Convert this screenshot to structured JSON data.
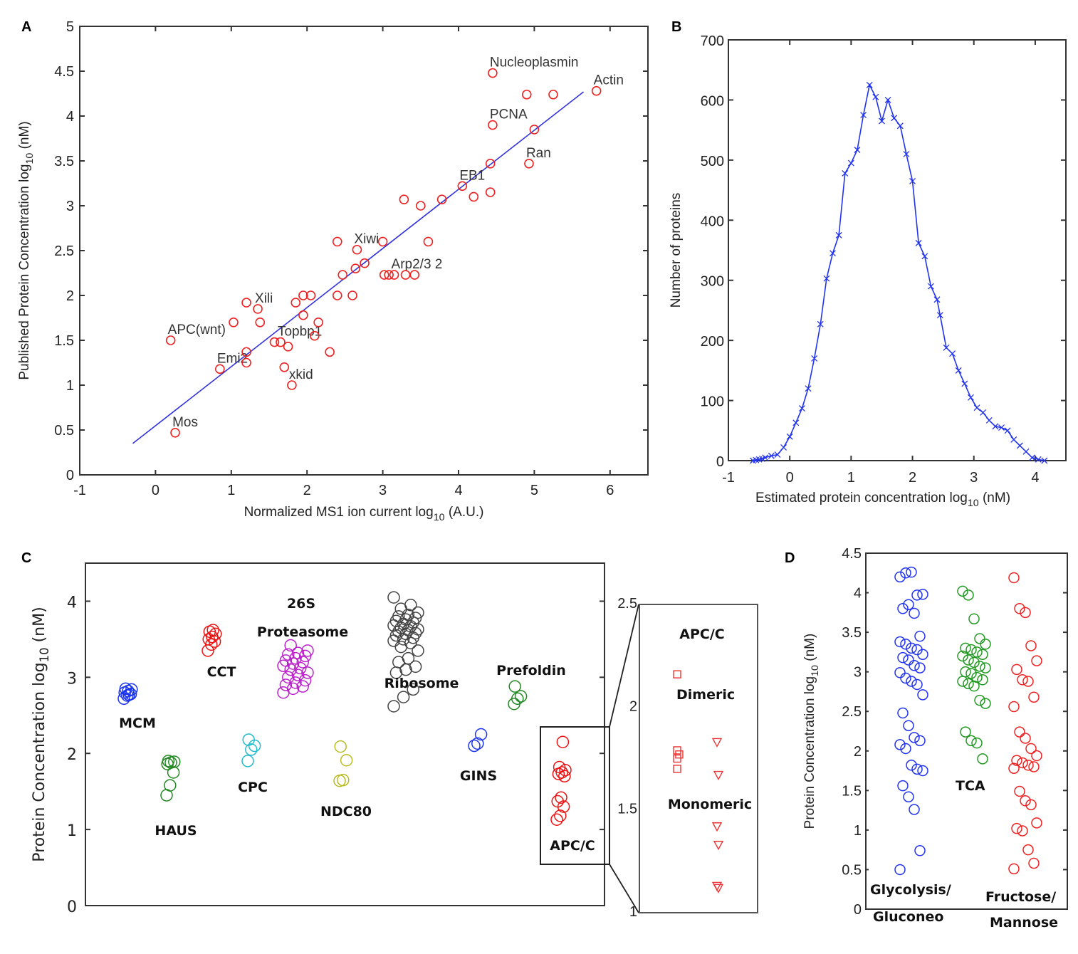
{
  "chart_data": [
    {
      "panel": "A",
      "type": "scatter",
      "xlabel": "Normalized MS1 ion current log",
      "xlabel_sub": "10",
      "xlabel_suffix": " (A.U.)",
      "ylabel": "Published Protein Concentration log",
      "ylabel_sub": "10",
      "ylabel_suffix": " (nM)",
      "xlim": [
        -1,
        6.5
      ],
      "ylim": [
        0,
        5
      ],
      "xticks": [
        -1,
        0,
        1,
        2,
        3,
        4,
        5,
        6
      ],
      "yticks": [
        0,
        0.5,
        1,
        1.5,
        2,
        2.5,
        3,
        3.5,
        4,
        4.5,
        5
      ],
      "marker_color": "#ee2222",
      "fit_color": "#3333dd",
      "fit_line": {
        "x": [
          -0.3,
          5.65
        ],
        "y": [
          0.35,
          4.27
        ]
      },
      "points": [
        {
          "x": 0.2,
          "y": 1.5,
          "label": "APC(wnt)"
        },
        {
          "x": 0.26,
          "y": 0.47,
          "label": "Mos"
        },
        {
          "x": 0.85,
          "y": 1.18,
          "label": "Emi2"
        },
        {
          "x": 1.03,
          "y": 1.7
        },
        {
          "x": 1.2,
          "y": 1.92
        },
        {
          "x": 1.2,
          "y": 1.37
        },
        {
          "x": 1.2,
          "y": 1.25
        },
        {
          "x": 1.35,
          "y": 1.85,
          "label": "Xili"
        },
        {
          "x": 1.38,
          "y": 1.7
        },
        {
          "x": 1.57,
          "y": 1.48
        },
        {
          "x": 1.65,
          "y": 1.48,
          "label": "Topbp1"
        },
        {
          "x": 1.7,
          "y": 1.2
        },
        {
          "x": 1.75,
          "y": 1.43
        },
        {
          "x": 1.8,
          "y": 1.0,
          "label": "xkid"
        },
        {
          "x": 1.85,
          "y": 1.92
        },
        {
          "x": 1.95,
          "y": 2.0
        },
        {
          "x": 1.95,
          "y": 1.78
        },
        {
          "x": 2.05,
          "y": 2.0
        },
        {
          "x": 2.1,
          "y": 1.55
        },
        {
          "x": 2.15,
          "y": 1.7
        },
        {
          "x": 2.3,
          "y": 1.37
        },
        {
          "x": 2.4,
          "y": 2.6
        },
        {
          "x": 2.4,
          "y": 2.0
        },
        {
          "x": 2.47,
          "y": 2.23
        },
        {
          "x": 2.6,
          "y": 2.0
        },
        {
          "x": 2.64,
          "y": 2.3
        },
        {
          "x": 2.66,
          "y": 2.51,
          "label": "Xiwi"
        },
        {
          "x": 2.76,
          "y": 2.36
        },
        {
          "x": 3.0,
          "y": 2.6
        },
        {
          "x": 3.02,
          "y": 2.23
        },
        {
          "x": 3.08,
          "y": 2.23
        },
        {
          "x": 3.15,
          "y": 2.23,
          "label": "Arp2/3 2"
        },
        {
          "x": 3.3,
          "y": 2.23
        },
        {
          "x": 3.42,
          "y": 2.23
        },
        {
          "x": 3.28,
          "y": 3.07
        },
        {
          "x": 3.5,
          "y": 3.0
        },
        {
          "x": 3.6,
          "y": 2.6
        },
        {
          "x": 3.78,
          "y": 3.07
        },
        {
          "x": 4.05,
          "y": 3.22,
          "label": "EB1"
        },
        {
          "x": 4.2,
          "y": 3.1
        },
        {
          "x": 4.42,
          "y": 3.47
        },
        {
          "x": 4.42,
          "y": 3.15
        },
        {
          "x": 4.45,
          "y": 4.48,
          "label": "Nucleoplasmin"
        },
        {
          "x": 4.45,
          "y": 3.9,
          "label": "PCNA"
        },
        {
          "x": 4.9,
          "y": 4.24
        },
        {
          "x": 4.93,
          "y": 3.47,
          "label": "Ran"
        },
        {
          "x": 5.0,
          "y": 3.85
        },
        {
          "x": 5.25,
          "y": 4.24
        },
        {
          "x": 5.82,
          "y": 4.28,
          "label": "Actin"
        }
      ]
    },
    {
      "panel": "B",
      "type": "line",
      "xlabel": "Estimated protein concentration log",
      "xlabel_sub": "10",
      "xlabel_suffix": " (nM)",
      "ylabel": "Number of proteins",
      "xlim": [
        -1,
        4.5
      ],
      "ylim": [
        0,
        700
      ],
      "xticks": [
        -1,
        0,
        1,
        2,
        3,
        4
      ],
      "yticks": [
        0,
        100,
        200,
        300,
        400,
        500,
        600,
        700
      ],
      "line_color": "#2233ee",
      "marker": "x",
      "x": [
        -0.6,
        -0.55,
        -0.5,
        -0.45,
        -0.4,
        -0.3,
        -0.2,
        -0.1,
        0.0,
        0.1,
        0.2,
        0.3,
        0.4,
        0.5,
        0.6,
        0.7,
        0.8,
        0.9,
        1.0,
        1.1,
        1.2,
        1.3,
        1.4,
        1.5,
        1.6,
        1.7,
        1.8,
        1.9,
        2.0,
        2.1,
        2.2,
        2.3,
        2.4,
        2.45,
        2.55,
        2.65,
        2.75,
        2.85,
        2.95,
        3.05,
        3.15,
        3.25,
        3.35,
        3.45,
        3.55,
        3.65,
        3.75,
        3.85,
        3.95,
        4.05,
        4.15
      ],
      "y": [
        0,
        1,
        2,
        3,
        5,
        8,
        10,
        22,
        40,
        63,
        87,
        120,
        170,
        227,
        303,
        345,
        375,
        478,
        495,
        517,
        575,
        625,
        605,
        565,
        600,
        570,
        557,
        510,
        465,
        362,
        340,
        290,
        268,
        242,
        188,
        178,
        150,
        128,
        105,
        88,
        80,
        67,
        57,
        55,
        50,
        35,
        25,
        15,
        5,
        2,
        0
      ]
    },
    {
      "panel": "C",
      "type": "scatter",
      "ylabel": "Protein Concentration log",
      "ylabel_sub": "10",
      "ylabel_suffix": " (nM)",
      "ylim": [
        0,
        4.5
      ],
      "yticks": [
        0,
        1,
        2,
        3,
        4
      ],
      "groups": [
        {
          "name": "MCM",
          "color": "#1a33ee",
          "xpos": 1,
          "values": [
            2.72,
            2.76,
            2.78,
            2.8,
            2.82,
            2.84,
            2.85,
            2.77
          ]
        },
        {
          "name": "HAUS",
          "color": "#228822",
          "xpos": 2,
          "values": [
            1.45,
            1.58,
            1.75,
            1.86,
            1.88,
            1.89,
            1.9
          ]
        },
        {
          "name": "CCT",
          "color": "#ee1111",
          "xpos": 3,
          "values": [
            3.35,
            3.43,
            3.47,
            3.5,
            3.53,
            3.57,
            3.6,
            3.62
          ]
        },
        {
          "name": "CPC",
          "color": "#22bbcc",
          "xpos": 4,
          "values": [
            1.9,
            2.05,
            2.1,
            2.18
          ]
        },
        {
          "name": "26S Proteasome",
          "color": "#bb22cc",
          "xpos": 5,
          "values": [
            2.8,
            2.85,
            2.88,
            2.9,
            2.93,
            2.96,
            3.0,
            3.03,
            3.06,
            3.1,
            3.12,
            3.15,
            3.18,
            3.2,
            3.22,
            3.25,
            3.28,
            3.3,
            3.32,
            3.35,
            3.42
          ]
        },
        {
          "name": "NDC80",
          "color": "#bbbb22",
          "xpos": 6,
          "values": [
            1.64,
            1.65,
            1.91,
            2.09
          ]
        },
        {
          "name": "Ribosome",
          "color": "#444444",
          "xpos": 7,
          "values": [
            2.62,
            2.74,
            2.84,
            3.06,
            3.1,
            3.14,
            3.2,
            3.25,
            3.35,
            3.4,
            3.45,
            3.48,
            3.5,
            3.52,
            3.55,
            3.57,
            3.58,
            3.6,
            3.62,
            3.63,
            3.65,
            3.67,
            3.68,
            3.7,
            3.72,
            3.74,
            3.76,
            3.78,
            3.8,
            3.82,
            3.85,
            3.9,
            3.95,
            4.05
          ]
        },
        {
          "name": "GINS",
          "color": "#1a33ee",
          "xpos": 8,
          "values": [
            2.1,
            2.13,
            2.25
          ]
        },
        {
          "name": "Prefoldin",
          "color": "#228822",
          "xpos": 9,
          "values": [
            2.65,
            2.72,
            2.75,
            2.88
          ]
        },
        {
          "name": "APC/C",
          "color": "#ee1111",
          "xpos": 10,
          "values": [
            1.13,
            1.18,
            1.3,
            1.37,
            1.42,
            1.7,
            1.73,
            1.75,
            1.78,
            1.82,
            2.15
          ]
        }
      ],
      "inset": {
        "title": "APC/C",
        "ylim": [
          1,
          2.5
        ],
        "yticks": [
          1,
          1.5,
          2,
          2.5
        ],
        "series": [
          {
            "name": "Dimeric",
            "marker": "square",
            "color": "#ee3333",
            "values": [
              2.16,
              1.79,
              1.77,
              1.75,
              1.7
            ]
          },
          {
            "name": "Monomeric",
            "marker": "triangle-down",
            "color": "#ee3333",
            "values": [
              1.83,
              1.67,
              1.42,
              1.33,
              1.13,
              1.12
            ]
          }
        ]
      }
    },
    {
      "panel": "D",
      "type": "scatter",
      "ylabel": "Protein Concentration log",
      "ylabel_sub": "10",
      "ylabel_suffix": " (nM)",
      "ylim": [
        0,
        4.5
      ],
      "yticks": [
        0,
        0.5,
        1,
        1.5,
        2,
        2.5,
        3,
        3.5,
        4,
        4.5
      ],
      "groups": [
        {
          "name": "Glycolysis/ Gluconeo",
          "color": "#2233ee",
          "values": [
            4.2,
            4.25,
            4.26,
            3.97,
            3.98,
            3.8,
            3.85,
            3.74,
            3.45,
            3.38,
            3.35,
            3.3,
            3.28,
            3.22,
            3.18,
            3.15,
            3.08,
            3.05,
            2.99,
            2.92,
            2.88,
            2.84,
            2.71,
            2.48,
            2.32,
            2.17,
            2.13,
            2.08,
            2.03,
            1.82,
            1.77,
            1.75,
            1.56,
            1.42,
            1.26,
            0.74,
            0.5
          ]
        },
        {
          "name": "TCA",
          "color": "#229922",
          "values": [
            4.02,
            3.97,
            3.67,
            3.42,
            3.35,
            3.3,
            3.28,
            3.25,
            3.22,
            3.2,
            3.15,
            3.12,
            3.07,
            3.05,
            3.0,
            2.98,
            2.93,
            2.9,
            2.88,
            2.85,
            2.82,
            2.64,
            2.6,
            2.24,
            2.13,
            2.1,
            1.9
          ]
        },
        {
          "name": "Fructose/ Mannose",
          "color": "#ee2222",
          "values": [
            4.19,
            3.8,
            3.75,
            3.33,
            3.14,
            3.03,
            2.9,
            2.88,
            2.68,
            2.56,
            2.24,
            2.16,
            2.03,
            1.94,
            1.88,
            1.85,
            1.82,
            1.8,
            1.78,
            1.49,
            1.37,
            1.32,
            1.09,
            1.02,
            0.99,
            0.75,
            0.58,
            0.51
          ]
        }
      ]
    }
  ],
  "panel_labels": [
    "A",
    "B",
    "C",
    "D"
  ]
}
